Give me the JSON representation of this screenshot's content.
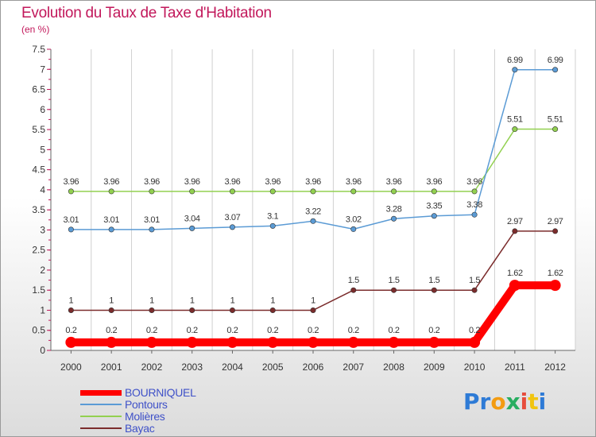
{
  "header": {
    "title": "Evolution du Taux de Taxe d'Habitation",
    "unit": "(en %)"
  },
  "logo_text": "Proxiti",
  "chart_data": {
    "type": "line",
    "title": "Evolution du Taux de Taxe d'Habitation",
    "ylabel": "(en %)",
    "xlabel": "",
    "categories": [
      "2000",
      "2001",
      "2002",
      "2003",
      "2004",
      "2005",
      "2006",
      "2007",
      "2008",
      "2009",
      "2010",
      "2011",
      "2012"
    ],
    "ylim": [
      0,
      7.5
    ],
    "yticks": [
      "0",
      "0.5",
      "1",
      "1.5",
      "2",
      "2.5",
      "3",
      "3.5",
      "4",
      "4.5",
      "5",
      "5.5",
      "6",
      "6.5",
      "7",
      "7.5"
    ],
    "grid": "vertical",
    "legend_position": "bottom-left",
    "series": [
      {
        "name": "BOURNIQUEL",
        "color": "#ff0000",
        "line_width": "thick",
        "values": [
          0.2,
          0.2,
          0.2,
          0.2,
          0.2,
          0.2,
          0.2,
          0.2,
          0.2,
          0.2,
          0.2,
          1.62,
          1.62
        ],
        "labels": [
          "0.2",
          "0.2",
          "0.2",
          "0.2",
          "0.2",
          "0.2",
          "0.2",
          "0.2",
          "0.2",
          "0.2",
          "0.2",
          "1.62",
          "1.62"
        ]
      },
      {
        "name": "Pontours",
        "color": "#5b9bd5",
        "values": [
          3.01,
          3.01,
          3.01,
          3.04,
          3.07,
          3.1,
          3.22,
          3.02,
          3.28,
          3.35,
          3.38,
          6.99,
          6.99
        ],
        "labels": [
          "3.01",
          "3.01",
          "3.01",
          "3.04",
          "3.07",
          "3.1",
          "3.22",
          "3.02",
          "3.28",
          "3.35",
          "3.38",
          "6.99",
          "6.99"
        ]
      },
      {
        "name": "Molières",
        "color": "#92d050",
        "values": [
          3.96,
          3.96,
          3.96,
          3.96,
          3.96,
          3.96,
          3.96,
          3.96,
          3.96,
          3.96,
          3.96,
          5.51,
          5.51
        ],
        "labels": [
          "3.96",
          "3.96",
          "3.96",
          "3.96",
          "3.96",
          "3.96",
          "3.96",
          "3.96",
          "3.96",
          "3.96",
          "3.96",
          "5.51",
          "5.51"
        ]
      },
      {
        "name": "Bayac",
        "color": "#7b2c2c",
        "values": [
          1,
          1,
          1,
          1,
          1,
          1,
          1,
          1.5,
          1.5,
          1.5,
          1.5,
          2.97,
          2.97
        ],
        "labels": [
          "1",
          "1",
          "1",
          "1",
          "1",
          "1",
          "1",
          "1.5",
          "1.5",
          "1.5",
          "1.5",
          "2.97",
          "2.97"
        ]
      }
    ]
  }
}
